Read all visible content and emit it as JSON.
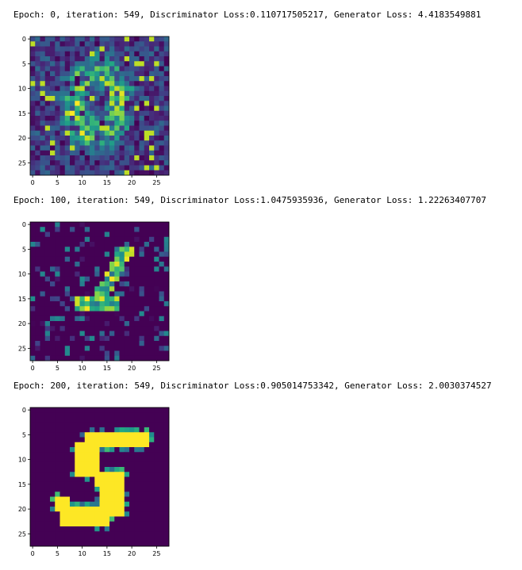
{
  "outputs": [
    {
      "log_line": "Epoch: 0, iteration: 549, Discriminator Loss:0.110717505217, Generator Loss: 4.4183549881",
      "image": {
        "colormap": "viridis",
        "grid": 28,
        "x_ticks": [
          "0",
          "5",
          "10",
          "15",
          "20",
          "25"
        ],
        "y_ticks": [
          "0",
          "5",
          "10",
          "15",
          "20",
          "25"
        ],
        "pattern": "noisy-digit"
      }
    },
    {
      "log_line": "Epoch: 100, iteration: 549, Discriminator Loss:1.0475935936, Generator Loss: 1.22263407707",
      "image": {
        "colormap": "viridis",
        "grid": 28,
        "x_ticks": [
          "0",
          "5",
          "10",
          "15",
          "20",
          "25"
        ],
        "y_ticks": [
          "0",
          "5",
          "10",
          "15",
          "20",
          "25"
        ],
        "pattern": "sparse-digit"
      }
    },
    {
      "log_line": "Epoch: 200, iteration: 549, Discriminator Loss:0.905014753342, Generator Loss: 2.0030374527",
      "image": {
        "colormap": "viridis",
        "grid": 28,
        "x_ticks": [
          "0",
          "5",
          "10",
          "15",
          "20",
          "25"
        ],
        "y_ticks": [
          "0",
          "5",
          "10",
          "15",
          "20",
          "25"
        ],
        "pattern": "digit-5"
      }
    }
  ]
}
